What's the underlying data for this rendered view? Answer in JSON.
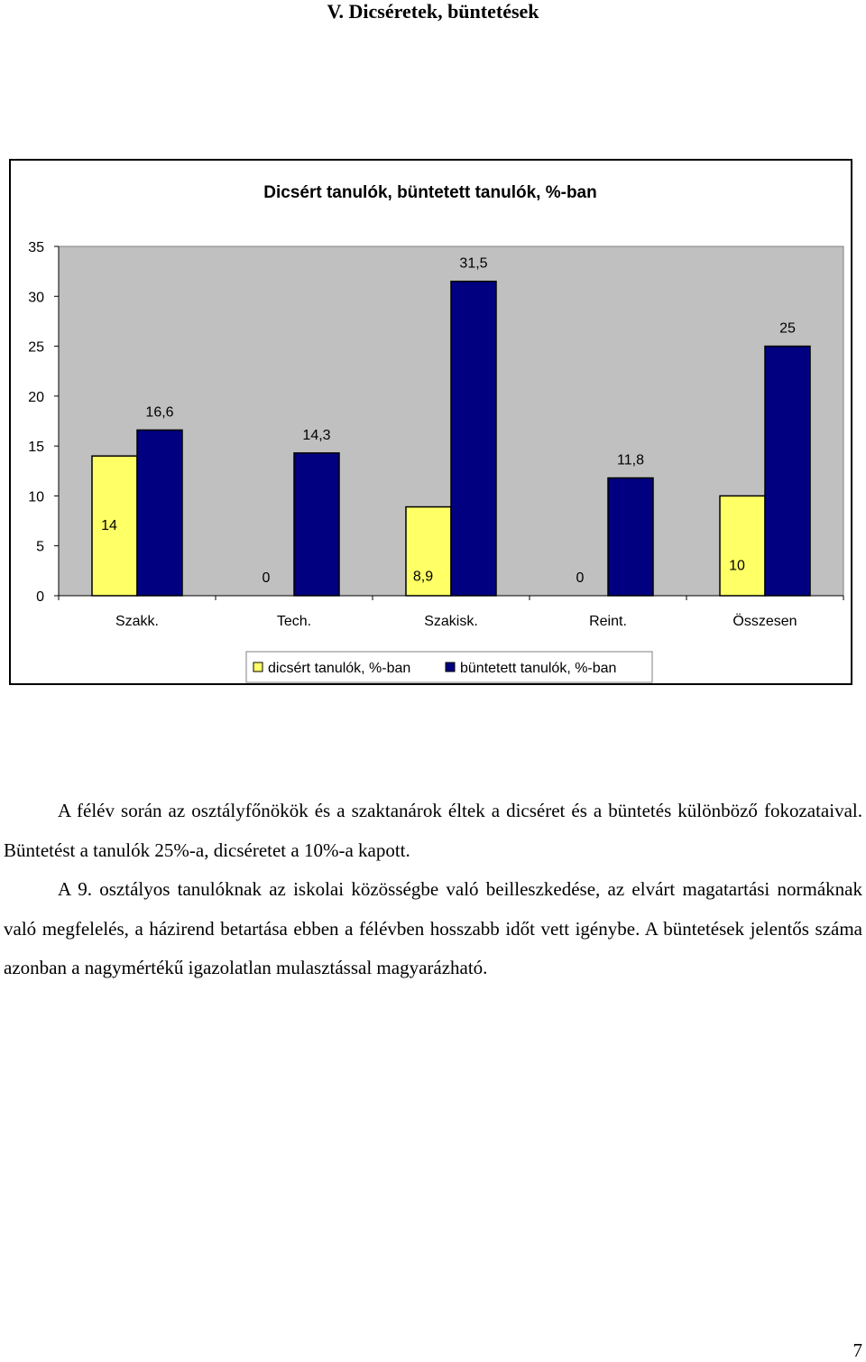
{
  "heading": "V. Dicséretek, büntetések",
  "chart_data": {
    "type": "bar",
    "title": "Dicsért tanulók, büntetett tanulók, %-ban",
    "categories": [
      "Szakk.",
      "Tech.",
      "Szakisk.",
      "Reint.",
      "Összesen"
    ],
    "series": [
      {
        "name": "dicsért tanulók, %-ban",
        "values": [
          14,
          0,
          8.9,
          0,
          10
        ],
        "labels": [
          "14",
          "0",
          "8,9",
          "0",
          "10"
        ],
        "color": "#ffff66"
      },
      {
        "name": "büntetett tanulók, %-ban",
        "values": [
          16.6,
          14.3,
          31.5,
          11.8,
          25
        ],
        "labels": [
          "16,6",
          "14,3",
          "31,5",
          "11,8",
          "25"
        ],
        "color": "#000080"
      }
    ],
    "ylim": [
      0,
      35
    ],
    "yticks": [
      0,
      5,
      10,
      15,
      20,
      25,
      30,
      35
    ],
    "xlabel": "",
    "ylabel": "",
    "plot_background": "#c0c0c0",
    "grid": false,
    "legend_position": "bottom"
  },
  "paragraphs": [
    "A félév során az osztályfőnökök és a szaktanárok éltek a dicséret és a büntetés különböző fokozataival. Büntetést a tanulók 25%-a, dicséretet a 10%-a kapott.",
    "A 9. osztályos tanulóknak az iskolai közösségbe való beilleszkedése, az elvárt magatartási normáknak való megfelelés, a házirend betartása ebben a félévben hosszabb időt vett igénybe. A büntetések jelentős száma azonban a nagymértékű igazolatlan mulasztással magyarázható."
  ],
  "page_number": "7"
}
